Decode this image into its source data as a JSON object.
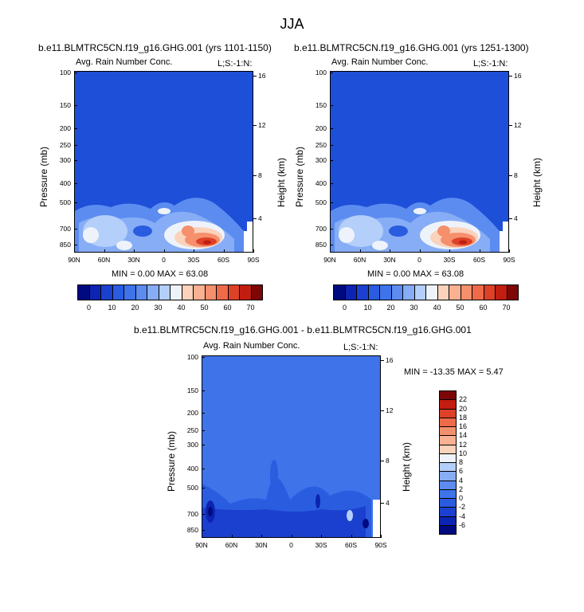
{
  "title": "JJA",
  "colors": {
    "background_field": "#1e4fd8",
    "scale": [
      "#000a80",
      "#0c24b2",
      "#1b40cf",
      "#2a5ce0",
      "#3e73ea",
      "#5c8cf0",
      "#86adf6",
      "#b3cffa",
      "#eef3fb",
      "#fbd2bb",
      "#f9b191",
      "#f58f6c",
      "#ee6a48",
      "#dd4127",
      "#c21d11",
      "#7d0606"
    ]
  },
  "chart_data": [
    {
      "type": "heatmap",
      "name": "top-left",
      "title": "b.e11.BLMTRC5CN.f19_g16.GHG.001 (yrs 1101-1150)",
      "left_label": "Avg. Rain Number Conc.",
      "right_label": "L;S:-1:N:",
      "ylabel": "Pressure (mb)",
      "ylabel_right": "Height (km)",
      "x_ticks": [
        "90N",
        "60N",
        "30N",
        "0",
        "30S",
        "60S",
        "90S"
      ],
      "y_ticks": [
        "100",
        "150",
        "200",
        "250",
        "300",
        "400",
        "500",
        "700",
        "850"
      ],
      "y_ticks_right": [
        "16",
        "12",
        "8",
        "4"
      ],
      "min_max": "MIN =   0.00  MAX =  63.08",
      "colorbar_ticks": [
        "0",
        "10",
        "20",
        "30",
        "40",
        "50",
        "60",
        "70"
      ],
      "grid": false
    },
    {
      "type": "heatmap",
      "name": "top-right",
      "title": "b.e11.BLMTRC5CN.f19_g16.GHG.001 (yrs 1251-1300)",
      "left_label": "Avg. Rain Number Conc.",
      "right_label": "L;S:-1:N:",
      "ylabel": "Pressure (mb)",
      "ylabel_right": "Height (km)",
      "x_ticks": [
        "90N",
        "60N",
        "30N",
        "0",
        "30S",
        "60S",
        "90S"
      ],
      "y_ticks": [
        "100",
        "150",
        "200",
        "250",
        "300",
        "400",
        "500",
        "700",
        "850"
      ],
      "y_ticks_right": [
        "16",
        "12",
        "8",
        "4"
      ],
      "min_max": "MIN =   0.00  MAX =  63.08",
      "colorbar_ticks": [
        "0",
        "10",
        "20",
        "30",
        "40",
        "50",
        "60",
        "70"
      ],
      "grid": false
    },
    {
      "type": "heatmap",
      "name": "difference",
      "title": "b.e11.BLMTRC5CN.f19_g16.GHG.001 - b.e11.BLMTRC5CN.f19_g16.GHG.001",
      "left_label": "Avg. Rain Number Conc.",
      "right_label": "L;S:-1:N:",
      "ylabel": "Pressure (mb)",
      "ylabel_right": "Height (km)",
      "x_ticks": [
        "90N",
        "60N",
        "30N",
        "0",
        "30S",
        "60S",
        "90S"
      ],
      "y_ticks": [
        "100",
        "150",
        "200",
        "250",
        "300",
        "400",
        "500",
        "700",
        "850"
      ],
      "y_ticks_right": [
        "16",
        "12",
        "8",
        "4"
      ],
      "min_max": "MIN = -13.35  MAX =   5.47",
      "colorbar_ticks": [
        "22",
        "20",
        "18",
        "16",
        "14",
        "12",
        "10",
        "8",
        "6",
        "4",
        "2",
        "0",
        "-2",
        "-4",
        "-6"
      ],
      "grid": false
    }
  ]
}
